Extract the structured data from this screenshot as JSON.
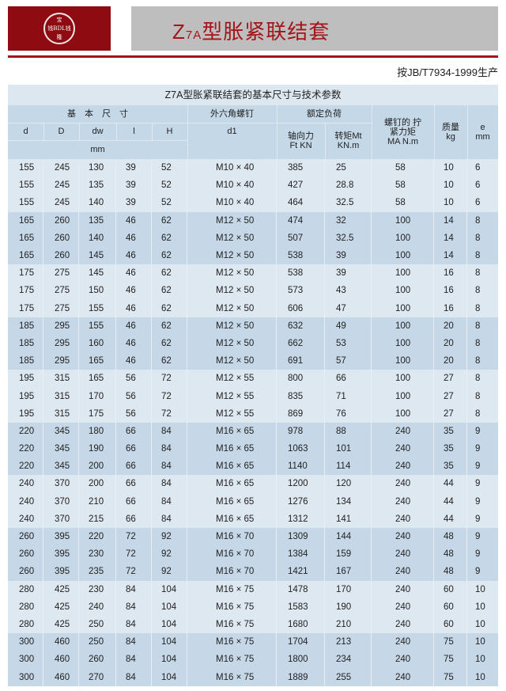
{
  "logo": {
    "top": "宝",
    "middle": "钱BDL钱",
    "bottom": "隆"
  },
  "header": {
    "title_prefix": "Z",
    "title_sub": "7A",
    "title_main": "型胀紧联结套",
    "standard": "按JB/T7934-1999生产"
  },
  "table": {
    "title": "Z7A型胀紧联结套的基本尺寸与技术参数",
    "headers": {
      "basic_dims": "基　本　尺　寸",
      "bolt": "外六角螺钉",
      "rated_load": "额定负荷",
      "tightening_torque": "螺钉的 拧紧力矩 MA N.m",
      "mass": "质量 kg",
      "e": "e mm",
      "d": "d",
      "D": "D",
      "dw": "dw",
      "l": "l",
      "H": "H",
      "d1": "d1",
      "axial": "轴向力Ft KN",
      "torque": "转矩Mt KN.m",
      "mm": "mm"
    },
    "rows": [
      [
        "155",
        "245",
        "130",
        "39",
        "52",
        "M10 × 40",
        "385",
        "25",
        "58",
        "10",
        "6"
      ],
      [
        "155",
        "245",
        "135",
        "39",
        "52",
        "M10 × 40",
        "427",
        "28.8",
        "58",
        "10",
        "6"
      ],
      [
        "155",
        "245",
        "140",
        "39",
        "52",
        "M10 × 40",
        "464",
        "32.5",
        "58",
        "10",
        "6"
      ],
      [
        "165",
        "260",
        "135",
        "46",
        "62",
        "M12 × 50",
        "474",
        "32",
        "100",
        "14",
        "8"
      ],
      [
        "165",
        "260",
        "140",
        "46",
        "62",
        "M12 × 50",
        "507",
        "32.5",
        "100",
        "14",
        "8"
      ],
      [
        "165",
        "260",
        "145",
        "46",
        "62",
        "M12 × 50",
        "538",
        "39",
        "100",
        "14",
        "8"
      ],
      [
        "175",
        "275",
        "145",
        "46",
        "62",
        "M12 × 50",
        "538",
        "39",
        "100",
        "16",
        "8"
      ],
      [
        "175",
        "275",
        "150",
        "46",
        "62",
        "M12 × 50",
        "573",
        "43",
        "100",
        "16",
        "8"
      ],
      [
        "175",
        "275",
        "155",
        "46",
        "62",
        "M12 × 50",
        "606",
        "47",
        "100",
        "16",
        "8"
      ],
      [
        "185",
        "295",
        "155",
        "46",
        "62",
        "M12 × 50",
        "632",
        "49",
        "100",
        "20",
        "8"
      ],
      [
        "185",
        "295",
        "160",
        "46",
        "62",
        "M12 × 50",
        "662",
        "53",
        "100",
        "20",
        "8"
      ],
      [
        "185",
        "295",
        "165",
        "46",
        "62",
        "M12 × 50",
        "691",
        "57",
        "100",
        "20",
        "8"
      ],
      [
        "195",
        "315",
        "165",
        "56",
        "72",
        "M12 × 55",
        "800",
        "66",
        "100",
        "27",
        "8"
      ],
      [
        "195",
        "315",
        "170",
        "56",
        "72",
        "M12 × 55",
        "835",
        "71",
        "100",
        "27",
        "8"
      ],
      [
        "195",
        "315",
        "175",
        "56",
        "72",
        "M12 × 55",
        "869",
        "76",
        "100",
        "27",
        "8"
      ],
      [
        "220",
        "345",
        "180",
        "66",
        "84",
        "M16 × 65",
        "978",
        "88",
        "240",
        "35",
        "9"
      ],
      [
        "220",
        "345",
        "190",
        "66",
        "84",
        "M16 × 65",
        "1063",
        "101",
        "240",
        "35",
        "9"
      ],
      [
        "220",
        "345",
        "200",
        "66",
        "84",
        "M16 × 65",
        "1140",
        "114",
        "240",
        "35",
        "9"
      ],
      [
        "240",
        "370",
        "200",
        "66",
        "84",
        "M16 × 65",
        "1200",
        "120",
        "240",
        "44",
        "9"
      ],
      [
        "240",
        "370",
        "210",
        "66",
        "84",
        "M16 × 65",
        "1276",
        "134",
        "240",
        "44",
        "9"
      ],
      [
        "240",
        "370",
        "215",
        "66",
        "84",
        "M16 × 65",
        "1312",
        "141",
        "240",
        "44",
        "9"
      ],
      [
        "260",
        "395",
        "220",
        "72",
        "92",
        "M16 × 70",
        "1309",
        "144",
        "240",
        "48",
        "9"
      ],
      [
        "260",
        "395",
        "230",
        "72",
        "92",
        "M16 × 70",
        "1384",
        "159",
        "240",
        "48",
        "9"
      ],
      [
        "260",
        "395",
        "235",
        "72",
        "92",
        "M16 × 70",
        "1421",
        "167",
        "240",
        "48",
        "9"
      ],
      [
        "280",
        "425",
        "230",
        "84",
        "104",
        "M16 × 75",
        "1478",
        "170",
        "240",
        "60",
        "10"
      ],
      [
        "280",
        "425",
        "240",
        "84",
        "104",
        "M16 × 75",
        "1583",
        "190",
        "240",
        "60",
        "10"
      ],
      [
        "280",
        "425",
        "250",
        "84",
        "104",
        "M16 × 75",
        "1680",
        "210",
        "240",
        "60",
        "10"
      ],
      [
        "300",
        "460",
        "250",
        "84",
        "104",
        "M16 × 75",
        "1704",
        "213",
        "240",
        "75",
        "10"
      ],
      [
        "300",
        "460",
        "260",
        "84",
        "104",
        "M16 × 75",
        "1800",
        "234",
        "240",
        "75",
        "10"
      ],
      [
        "300",
        "460",
        "270",
        "84",
        "104",
        "M16 × 75",
        "1889",
        "255",
        "240",
        "75",
        "10"
      ]
    ]
  }
}
